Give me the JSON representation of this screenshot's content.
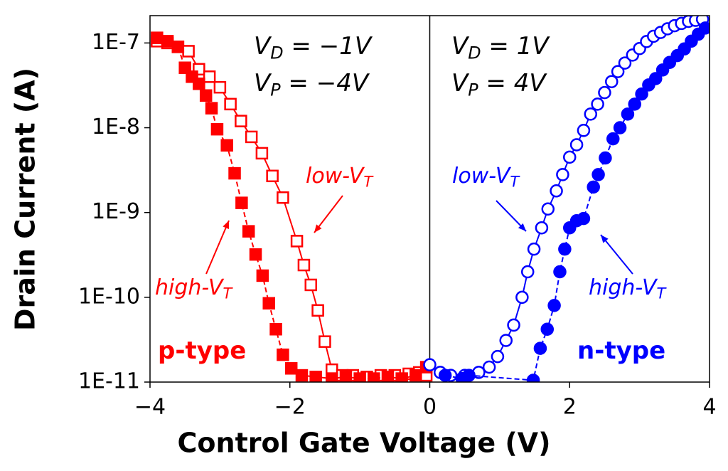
{
  "chart_data": {
    "type": "scatter",
    "xlabel": "Control Gate Voltage (V)",
    "ylabel": "Drain Current (A)",
    "xlim": [
      -4,
      4
    ],
    "ylim": [
      1e-11,
      2.1e-07
    ],
    "yscale": "log",
    "xticks": [
      {
        "value": -4,
        "label": "−4"
      },
      {
        "value": -2,
        "label": "−2"
      },
      0,
      2,
      4
    ],
    "yticks": [
      {
        "value": 1e-11,
        "label": "1E-11"
      },
      {
        "value": 1e-10,
        "label": "1E-10"
      },
      {
        "value": 1e-09,
        "label": "1E-9"
      },
      {
        "value": 1e-08,
        "label": "1E-8"
      },
      {
        "value": 1e-07,
        "label": "1E-7"
      }
    ],
    "vlines": [
      0
    ],
    "series": [
      {
        "color": "#ff0000",
        "marker": "square",
        "filled": false,
        "linestyle": "solid",
        "x": [
          -3.9,
          -3.75,
          -3.6,
          -3.45,
          -3.3,
          -3.15,
          -3.0,
          -2.85,
          -2.7,
          -2.55,
          -2.4,
          -2.25,
          -2.1,
          -1.9,
          -1.8,
          -1.7,
          -1.6,
          -1.5,
          -1.4,
          -1.25,
          -1.1,
          -0.9,
          -0.7,
          -0.5,
          -0.3,
          -0.15,
          -0.05
        ],
        "values": [
          1.05e-07,
          1e-07,
          9e-08,
          8e-08,
          4.9e-08,
          4e-08,
          3e-08,
          1.9e-08,
          1.2e-08,
          7.8e-09,
          5e-09,
          2.7e-09,
          1.5e-09,
          4.6e-10,
          2.4e-10,
          1.4e-10,
          7e-11,
          3e-11,
          1.4e-11,
          1.2e-11,
          1.2e-11,
          1.15e-11,
          1.2e-11,
          1.2e-11,
          1.25e-11,
          1.3e-11,
          1.2e-11
        ]
      },
      {
        "color": "#ff0000",
        "marker": "square",
        "filled": true,
        "linestyle": "dashed",
        "x": [
          -3.9,
          -3.75,
          -3.6,
          -3.5,
          -3.4,
          -3.3,
          -3.2,
          -3.12,
          -3.04,
          -2.9,
          -2.79,
          -2.69,
          -2.59,
          -2.49,
          -2.39,
          -2.3,
          -2.2,
          -2.1,
          -1.98,
          -1.83,
          -1.63,
          -1.4,
          -1.2,
          -1.0,
          -0.8,
          -0.6,
          -0.4,
          -0.2,
          -0.05
        ],
        "values": [
          1.15e-07,
          1.05e-07,
          9e-08,
          5.1e-08,
          4e-08,
          3.3e-08,
          2.4e-08,
          1.7e-08,
          9.6e-09,
          6.2e-09,
          2.9e-09,
          1.3e-09,
          6e-10,
          3.2e-10,
          1.8e-10,
          8.5e-11,
          4.2e-11,
          2.1e-11,
          1.45e-11,
          1.2e-11,
          1.15e-11,
          1.1e-11,
          1.15e-11,
          1.1e-11,
          1.1e-11,
          1.15e-11,
          1.1e-11,
          1.2e-11,
          1.5e-11
        ]
      },
      {
        "color": "#0000ff",
        "marker": "circle",
        "filled": false,
        "linestyle": "solid",
        "x": [
          0,
          0.15,
          0.3,
          0.5,
          0.7,
          0.85,
          0.97,
          1.09,
          1.2,
          1.32,
          1.4,
          1.49,
          1.6,
          1.69,
          1.81,
          1.9,
          2.0,
          2.1,
          2.2,
          2.3,
          2.4,
          2.5,
          2.6,
          2.69,
          2.79,
          2.9,
          3.0,
          3.1,
          3.2,
          3.3,
          3.4,
          3.5,
          3.6,
          3.7,
          3.8,
          3.9
        ],
        "values": [
          1.6e-11,
          1.3e-11,
          1.2e-11,
          1.2e-11,
          1.3e-11,
          1.5e-11,
          2e-11,
          3.1e-11,
          4.7e-11,
          1e-10,
          2e-10,
          3.7e-10,
          6.6e-10,
          1.1e-09,
          1.8e-09,
          2.8e-09,
          4.5e-09,
          6.3e-09,
          9.3e-09,
          1.45e-08,
          1.9e-08,
          2.6e-08,
          3.5e-08,
          4.6e-08,
          5.8e-08,
          7.2e-08,
          8.6e-08,
          1.04e-07,
          1.2e-07,
          1.33e-07,
          1.47e-07,
          1.6e-07,
          1.7e-07,
          1.8e-07,
          1.85e-07,
          1.9e-07
        ]
      },
      {
        "color": "#0000ff",
        "marker": "circle",
        "filled": true,
        "linestyle": "dashed",
        "x": [
          0.22,
          0.46,
          0.56,
          1.48,
          1.58,
          1.68,
          1.78,
          1.86,
          1.93,
          2.0,
          2.1,
          2.2,
          2.34,
          2.41,
          2.51,
          2.62,
          2.72,
          2.83,
          2.93,
          3.03,
          3.13,
          3.23,
          3.33,
          3.43,
          3.54,
          3.64,
          3.74,
          3.84,
          3.94
        ],
        "values": [
          1.2e-11,
          1.1e-11,
          1.2e-11,
          1.05e-11,
          2.5e-11,
          4.2e-11,
          8e-11,
          2e-10,
          3.7e-10,
          6.6e-10,
          8e-10,
          8.5e-10,
          2e-09,
          2.8e-09,
          4.4e-09,
          7.4e-09,
          1e-08,
          1.45e-08,
          1.9e-08,
          2.5e-08,
          3.2e-08,
          3.8e-08,
          4.8e-08,
          5.9e-08,
          7.1e-08,
          8.5e-08,
          1.05e-07,
          1.27e-07,
          1.5e-07
        ]
      }
    ],
    "annotations": [
      {
        "text": "V",
        "sub": "D",
        "rest": " = −1V",
        "color": "#000000"
      },
      {
        "text": "V",
        "sub": "P",
        "rest": " = −4V",
        "color": "#000000"
      },
      {
        "text": "V",
        "sub": "D",
        "rest": " = 1V",
        "color": "#000000"
      },
      {
        "text": "V",
        "sub": "P",
        "rest": " = 4V",
        "color": "#000000"
      },
      {
        "text": "low-V",
        "sub": "T",
        "color": "#ff0000"
      },
      {
        "text": "high-V",
        "sub": "T",
        "color": "#ff0000"
      },
      {
        "text": "low-V",
        "sub": "T",
        "color": "#0000ff"
      },
      {
        "text": "high-V",
        "sub": "T",
        "color": "#0000ff"
      },
      {
        "text": "p-type",
        "color": "#ff0000"
      },
      {
        "text": "n-type",
        "color": "#0000ff"
      }
    ]
  }
}
